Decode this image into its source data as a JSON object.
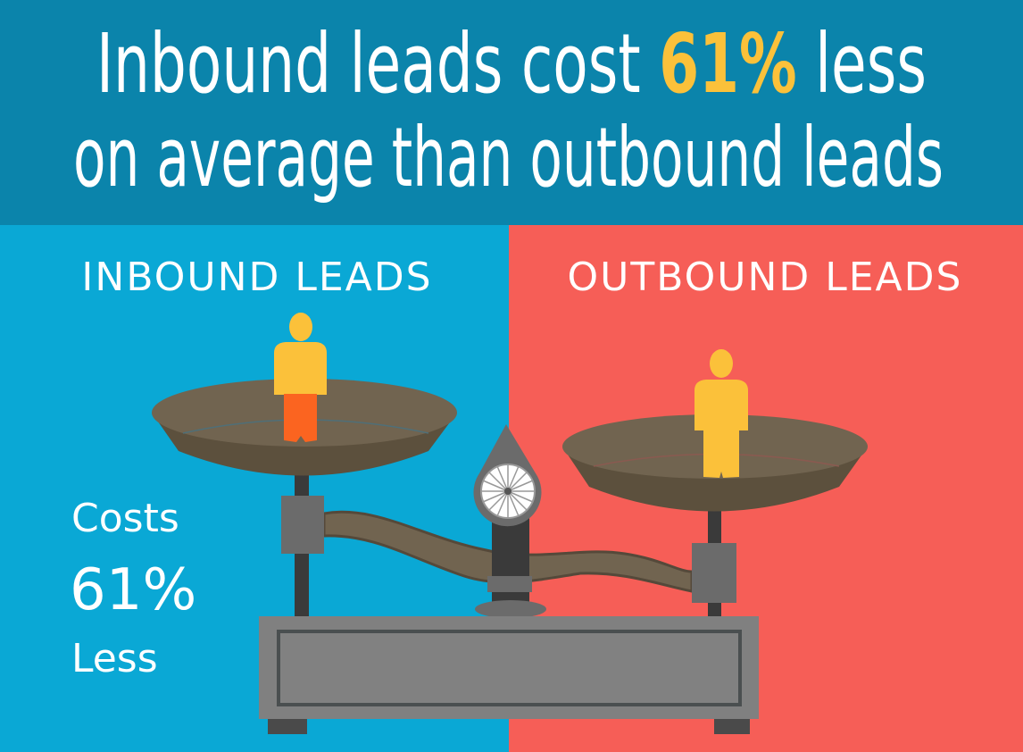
{
  "header": {
    "line1_prefix": "Inbound leads cost ",
    "line1_highlight": "61%",
    "line1_suffix": " less",
    "line2": "on average than outbound leads"
  },
  "left_panel": {
    "label": "INBOUND LEADS",
    "stat_line1": "Costs",
    "stat_line2": "61%",
    "stat_line3": "Less"
  },
  "right_panel": {
    "label": "OUTBOUND LEADS"
  },
  "colors": {
    "header_bg": "#0b84ab",
    "left_bg": "#0aa8d5",
    "right_bg": "#f65e57",
    "highlight": "#fbc13a",
    "person_yellow": "#fbc13a",
    "person_orange": "#fb6420",
    "pan": "#6e6250",
    "metal": "#7a7a7a"
  },
  "icons": {
    "left_person": "person-icon",
    "right_person": "person-icon",
    "scale": "balance-scale-illustration"
  }
}
